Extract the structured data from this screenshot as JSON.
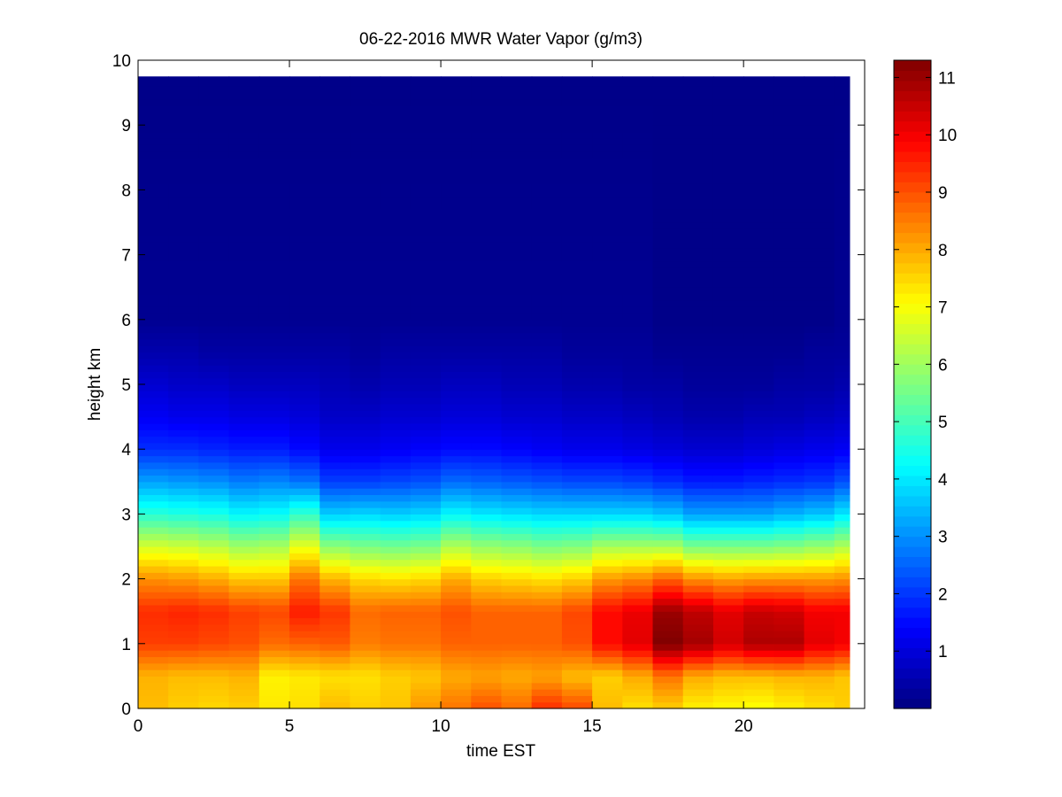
{
  "chart_data": {
    "type": "heatmap",
    "title": "06-22-2016 MWR Water Vapor (g/m3)",
    "xlabel": "time EST",
    "ylabel": "height km",
    "xlim": [
      0,
      24
    ],
    "ylim": [
      0,
      10
    ],
    "x_ticks": [
      "0",
      "5",
      "10",
      "15",
      "20"
    ],
    "y_ticks": [
      "0",
      "1",
      "2",
      "3",
      "4",
      "5",
      "6",
      "7",
      "8",
      "9",
      "10"
    ],
    "colorbar": {
      "colormap": "jet",
      "range": [
        0,
        11.3
      ],
      "ticks": [
        "1",
        "2",
        "3",
        "4",
        "5",
        "6",
        "7",
        "8",
        "9",
        "10",
        "11"
      ]
    },
    "time_range": [
      0,
      23.5
    ],
    "time_step": 1,
    "height_top": 9.75,
    "profiles": [
      {
        "time": 0,
        "z": [
          0,
          0.5,
          1.0,
          1.5,
          2.0,
          2.5,
          3.0,
          3.5,
          4.0,
          4.5,
          5.0,
          5.5,
          6.0,
          9.75
        ],
        "v": [
          7.8,
          7.9,
          9.2,
          9.4,
          8.3,
          6.6,
          4.7,
          3.2,
          1.9,
          1.3,
          0.9,
          0.5,
          0.2,
          0.1
        ]
      },
      {
        "time": 1,
        "z": [
          0,
          0.5,
          1.0,
          1.5,
          2.0,
          2.5,
          3.0,
          3.5,
          4.0,
          4.5,
          5.0,
          5.5,
          6.0,
          9.75
        ],
        "v": [
          7.6,
          7.8,
          9.2,
          9.5,
          8.2,
          6.5,
          4.6,
          3.1,
          1.9,
          1.2,
          0.8,
          0.5,
          0.2,
          0.1
        ]
      },
      {
        "time": 2,
        "z": [
          0,
          0.5,
          1.0,
          1.5,
          2.0,
          2.5,
          3.0,
          3.5,
          4.0,
          4.5,
          5.0,
          5.5,
          6.0,
          9.75
        ],
        "v": [
          7.5,
          7.8,
          9.1,
          9.4,
          8.0,
          6.3,
          4.5,
          3.0,
          1.8,
          1.2,
          0.8,
          0.4,
          0.2,
          0.1
        ]
      },
      {
        "time": 3,
        "z": [
          0,
          0.5,
          1.0,
          1.5,
          2.0,
          2.5,
          3.0,
          3.5,
          4.0,
          4.5,
          5.0,
          5.5,
          6.0,
          9.75
        ],
        "v": [
          7.6,
          7.9,
          9.0,
          9.2,
          7.7,
          6.0,
          4.2,
          2.8,
          1.7,
          1.1,
          0.7,
          0.4,
          0.2,
          0.1
        ]
      },
      {
        "time": 4,
        "z": [
          0,
          0.5,
          1.0,
          1.5,
          2.0,
          2.5,
          3.0,
          3.5,
          4.0,
          4.5,
          5.0,
          5.5,
          6.0,
          9.75
        ],
        "v": [
          7.3,
          7.2,
          8.7,
          9.1,
          7.7,
          6.1,
          4.3,
          2.9,
          1.7,
          1.1,
          0.7,
          0.4,
          0.2,
          0.1
        ]
      },
      {
        "time": 5,
        "z": [
          0,
          0.5,
          1.0,
          1.5,
          2.0,
          2.5,
          3.0,
          3.5,
          4.0,
          4.5,
          5.0,
          5.5,
          6.0,
          9.75
        ],
        "v": [
          7.4,
          7.3,
          8.8,
          9.6,
          8.6,
          6.8,
          4.8,
          2.7,
          1.5,
          1.0,
          0.7,
          0.4,
          0.2,
          0.1
        ]
      },
      {
        "time": 6,
        "z": [
          0,
          0.5,
          1.0,
          1.5,
          2.0,
          2.5,
          3.0,
          3.5,
          4.0,
          4.5,
          5.0,
          5.5,
          6.0,
          9.75
        ],
        "v": [
          7.8,
          7.4,
          8.9,
          9.3,
          7.9,
          5.8,
          3.7,
          2.1,
          1.2,
          0.8,
          0.6,
          0.4,
          0.2,
          0.1
        ]
      },
      {
        "time": 7,
        "z": [
          0,
          0.5,
          1.0,
          1.5,
          2.0,
          2.5,
          3.0,
          3.5,
          4.0,
          4.5,
          5.0,
          5.5,
          6.0,
          9.75
        ],
        "v": [
          7.6,
          7.4,
          8.5,
          8.7,
          7.5,
          5.6,
          3.8,
          2.1,
          1.2,
          0.8,
          0.5,
          0.3,
          0.2,
          0.1
        ]
      },
      {
        "time": 8,
        "z": [
          0,
          0.5,
          1.0,
          1.5,
          2.0,
          2.5,
          3.0,
          3.5,
          4.0,
          4.5,
          5.0,
          5.5,
          6.0,
          9.75
        ],
        "v": [
          7.7,
          7.6,
          8.6,
          8.8,
          7.4,
          5.5,
          3.7,
          2.2,
          1.3,
          0.9,
          0.6,
          0.4,
          0.2,
          0.1
        ]
      },
      {
        "time": 9,
        "z": [
          0,
          0.5,
          1.0,
          1.5,
          2.0,
          2.5,
          3.0,
          3.5,
          4.0,
          4.5,
          5.0,
          5.5,
          6.0,
          9.75
        ],
        "v": [
          8.2,
          7.7,
          8.6,
          8.8,
          7.5,
          5.6,
          3.8,
          2.3,
          1.4,
          0.9,
          0.6,
          0.4,
          0.2,
          0.1
        ]
      },
      {
        "time": 10,
        "z": [
          0,
          0.5,
          1.0,
          1.5,
          2.0,
          2.5,
          3.0,
          3.5,
          4.0,
          4.5,
          5.0,
          5.5,
          6.0,
          9.75
        ],
        "v": [
          8.6,
          8.0,
          8.8,
          9.0,
          8.0,
          6.2,
          4.2,
          2.6,
          1.5,
          1.0,
          0.7,
          0.4,
          0.2,
          0.1
        ]
      },
      {
        "time": 11,
        "z": [
          0,
          0.5,
          1.0,
          1.5,
          2.0,
          2.5,
          3.0,
          3.5,
          4.0,
          4.5,
          5.0,
          5.5,
          6.0,
          9.75
        ],
        "v": [
          9.0,
          8.1,
          8.8,
          8.8,
          7.6,
          5.9,
          4.0,
          2.5,
          1.5,
          1.0,
          0.7,
          0.4,
          0.2,
          0.1
        ]
      },
      {
        "time": 12,
        "z": [
          0,
          0.5,
          1.0,
          1.5,
          2.0,
          2.5,
          3.0,
          3.5,
          4.0,
          4.5,
          5.0,
          5.5,
          6.0,
          9.75
        ],
        "v": [
          8.7,
          8.0,
          8.8,
          8.8,
          7.5,
          5.8,
          3.9,
          2.4,
          1.4,
          0.9,
          0.6,
          0.4,
          0.2,
          0.1
        ]
      },
      {
        "time": 13,
        "z": [
          0,
          0.5,
          1.0,
          1.5,
          2.0,
          2.5,
          3.0,
          3.5,
          4.0,
          4.5,
          5.0,
          5.5,
          6.0,
          9.75
        ],
        "v": [
          9.4,
          8.1,
          8.8,
          8.8,
          7.4,
          5.6,
          3.8,
          2.3,
          1.3,
          0.9,
          0.6,
          0.4,
          0.2,
          0.1
        ]
      },
      {
        "time": 14,
        "z": [
          0,
          0.5,
          1.0,
          1.5,
          2.0,
          2.5,
          3.0,
          3.5,
          4.0,
          4.5,
          5.0,
          5.5,
          6.0,
          9.75
        ],
        "v": [
          9.1,
          7.8,
          9.0,
          9.1,
          7.6,
          5.7,
          3.8,
          2.2,
          1.2,
          0.8,
          0.5,
          0.3,
          0.2,
          0.1
        ]
      },
      {
        "time": 15,
        "z": [
          0,
          0.5,
          1.0,
          1.5,
          2.0,
          2.5,
          3.0,
          3.5,
          4.0,
          4.5,
          5.0,
          5.5,
          6.0,
          9.75
        ],
        "v": [
          7.8,
          7.6,
          9.8,
          9.8,
          8.2,
          6.1,
          3.8,
          2.2,
          1.2,
          0.8,
          0.5,
          0.3,
          0.2,
          0.1
        ]
      },
      {
        "time": 16,
        "z": [
          0,
          0.5,
          1.0,
          1.5,
          2.0,
          2.5,
          3.0,
          3.5,
          4.0,
          4.5,
          5.0,
          5.5,
          6.0,
          9.75
        ],
        "v": [
          7.4,
          8.0,
          10.2,
          10.1,
          8.4,
          6.1,
          3.8,
          2.1,
          1.1,
          0.7,
          0.4,
          0.3,
          0.2,
          0.1
        ]
      },
      {
        "time": 17,
        "z": [
          0,
          0.5,
          1.0,
          1.5,
          2.0,
          2.5,
          3.0,
          3.5,
          4.0,
          4.5,
          5.0,
          5.5,
          6.0,
          9.75
        ],
        "v": [
          7.6,
          8.6,
          11.3,
          11.0,
          8.8,
          6.1,
          3.6,
          1.9,
          1.0,
          0.6,
          0.4,
          0.2,
          0.1,
          0.1
        ]
      },
      {
        "time": 18,
        "z": [
          0,
          0.5,
          1.0,
          1.5,
          2.0,
          2.5,
          3.0,
          3.5,
          4.0,
          4.5,
          5.0,
          5.5,
          6.0,
          9.75
        ],
        "v": [
          7.2,
          8.0,
          10.9,
          10.6,
          8.3,
          5.6,
          3.2,
          1.7,
          0.9,
          0.5,
          0.3,
          0.2,
          0.1,
          0.1
        ]
      },
      {
        "time": 19,
        "z": [
          0,
          0.5,
          1.0,
          1.5,
          2.0,
          2.5,
          3.0,
          3.5,
          4.0,
          4.5,
          5.0,
          5.5,
          6.0,
          9.75
        ],
        "v": [
          7.1,
          7.8,
          10.4,
          10.2,
          8.1,
          5.6,
          3.2,
          1.7,
          0.9,
          0.5,
          0.3,
          0.2,
          0.1,
          0.1
        ]
      },
      {
        "time": 20,
        "z": [
          0,
          0.5,
          1.0,
          1.5,
          2.0,
          2.5,
          3.0,
          3.5,
          4.0,
          4.5,
          5.0,
          5.5,
          6.0,
          9.75
        ],
        "v": [
          7.0,
          7.8,
          10.8,
          10.5,
          8.2,
          5.6,
          3.2,
          1.8,
          1.0,
          0.6,
          0.3,
          0.2,
          0.1,
          0.1
        ]
      },
      {
        "time": 21,
        "z": [
          0,
          0.5,
          1.0,
          1.5,
          2.0,
          2.5,
          3.0,
          3.5,
          4.0,
          4.5,
          5.0,
          5.5,
          6.0,
          9.75
        ],
        "v": [
          7.2,
          7.9,
          10.8,
          10.4,
          8.2,
          5.7,
          3.4,
          1.9,
          1.1,
          0.6,
          0.4,
          0.2,
          0.1,
          0.1
        ]
      },
      {
        "time": 22,
        "z": [
          0,
          0.5,
          1.0,
          1.5,
          2.0,
          2.5,
          3.0,
          3.5,
          4.0,
          4.5,
          5.0,
          5.5,
          6.0,
          9.75
        ],
        "v": [
          7.4,
          7.9,
          10.2,
          10.0,
          8.2,
          5.9,
          3.6,
          2.0,
          1.2,
          0.7,
          0.4,
          0.3,
          0.1,
          0.1
        ]
      },
      {
        "time": 23,
        "z": [
          0,
          0.5,
          1.0,
          1.5,
          2.0,
          2.5,
          3.0,
          3.5,
          4.0,
          4.5,
          5.0,
          5.5,
          6.0,
          9.75
        ],
        "v": [
          7.6,
          7.7,
          10.0,
          10.0,
          8.3,
          6.2,
          4.0,
          2.3,
          1.3,
          0.8,
          0.5,
          0.3,
          0.2,
          0.1
        ]
      }
    ]
  }
}
